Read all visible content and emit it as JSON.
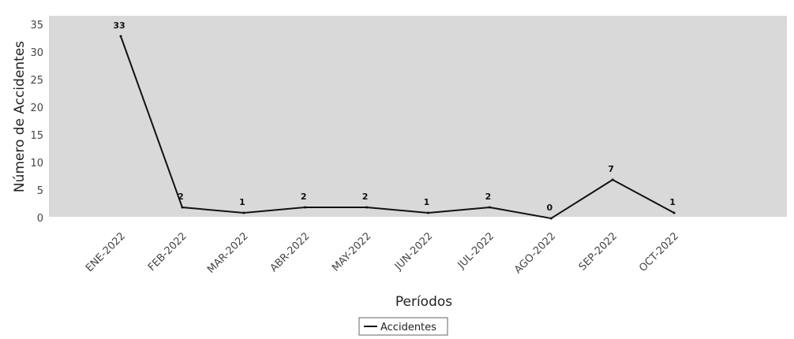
{
  "chart_data": {
    "type": "line",
    "categories": [
      "ENE-2022",
      "FEB-2022",
      "MAR-2022",
      "ABR-2022",
      "MAY-2022",
      "JUN-2022",
      "JUL-2022",
      "AGO-2022",
      "SEP-2022",
      "OCT-2022"
    ],
    "series": [
      {
        "name": "Accidentes",
        "values": [
          33,
          2,
          1,
          2,
          2,
          1,
          2,
          0,
          7,
          1
        ],
        "color": "#111111"
      }
    ],
    "data_labels": [
      "33",
      "2",
      "1",
      "2",
      "2",
      "1",
      "2",
      "0",
      "7",
      "1"
    ],
    "xlabel": "Períodos",
    "ylabel": "Número de Accidentes",
    "ylim": [
      0,
      35
    ],
    "yticks": [
      0,
      5,
      10,
      15,
      20,
      25,
      30,
      35
    ],
    "grid": false,
    "legend_position": "bottom-center",
    "plot_background": "#d9d9d9"
  }
}
